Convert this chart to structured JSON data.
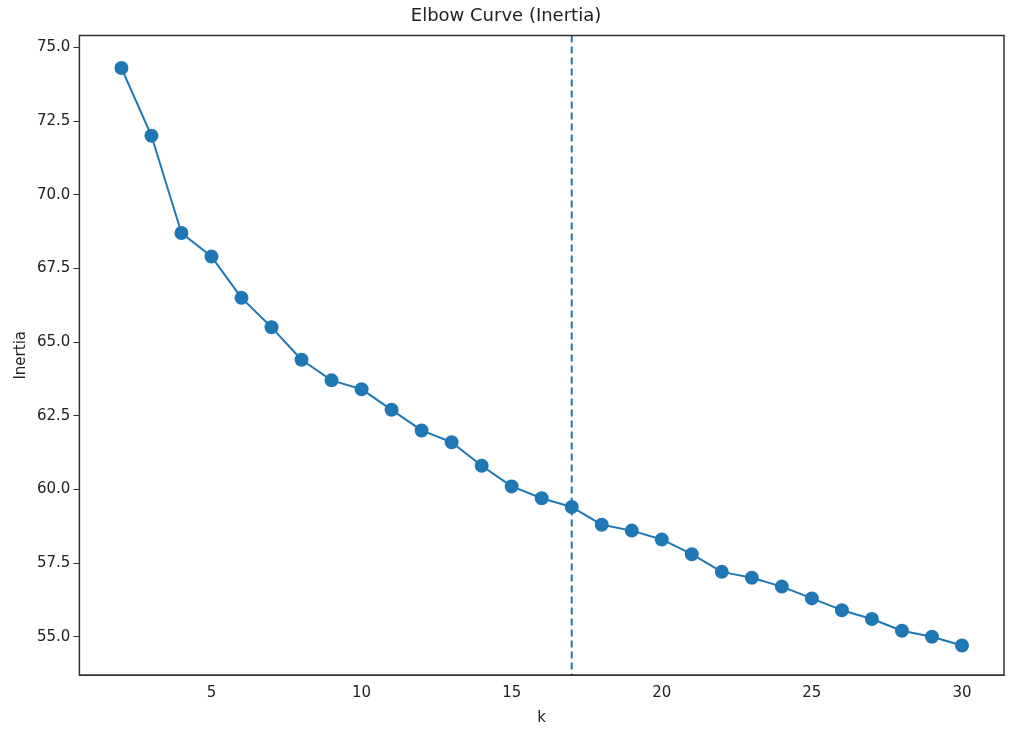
{
  "chart_data": {
    "type": "line",
    "title": "Elbow Curve (Inertia)",
    "xlabel": "k",
    "ylabel": "Inertia",
    "x": [
      2,
      3,
      4,
      5,
      6,
      7,
      8,
      9,
      10,
      11,
      12,
      13,
      14,
      15,
      16,
      17,
      18,
      19,
      20,
      21,
      22,
      23,
      24,
      25,
      26,
      27,
      28,
      29,
      30
    ],
    "series": [
      {
        "color": "#1f77b4",
        "values": [
          74.3,
          72.0,
          68.7,
          67.9,
          66.5,
          65.5,
          64.4,
          63.7,
          63.4,
          62.7,
          62.0,
          61.6,
          60.8,
          60.1,
          59.7,
          59.4,
          58.8,
          58.6,
          58.3,
          57.8,
          57.2,
          57.0,
          56.7,
          56.3,
          55.9,
          55.6,
          55.2,
          55.0,
          54.7
        ]
      }
    ],
    "xlim": [
      0.6,
      31.4
    ],
    "xticks": [
      5,
      10,
      15,
      20,
      25,
      30
    ],
    "ylim": [
      53.7,
      75.4
    ],
    "yticks": [
      {
        "value": 55,
        "label": "55.0"
      },
      {
        "value": 57.5,
        "label": "57.5"
      },
      {
        "value": 60,
        "label": "60.0"
      },
      {
        "value": 62.5,
        "label": "62.5"
      },
      {
        "value": 65,
        "label": "65.0"
      },
      {
        "value": 67.5,
        "label": "67.5"
      },
      {
        "value": 70,
        "label": "70.0"
      },
      {
        "value": 72.5,
        "label": "72.5"
      },
      {
        "value": 75,
        "label": "75.0"
      }
    ],
    "ref_lines": [
      {
        "axis": "x",
        "value": 17,
        "color": "#1f77b4",
        "line_style": "dashed"
      }
    ],
    "marker": "circle",
    "line_style": "solid",
    "grid": false,
    "legend": false
  }
}
